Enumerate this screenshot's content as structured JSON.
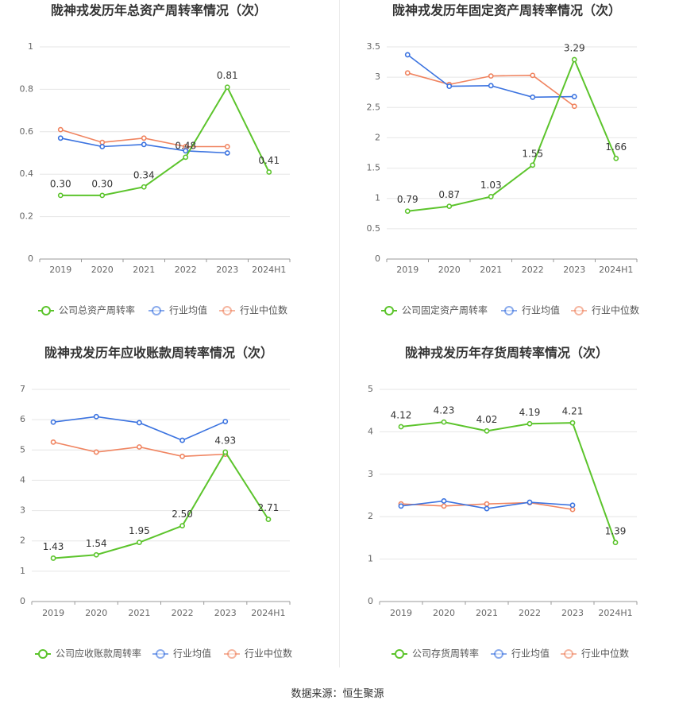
{
  "source_text": "数据来源：恒生聚源",
  "colors": {
    "company": "#5cc42c",
    "avg": "#3b73e0",
    "median": "#f08460"
  },
  "chart_data": [
    {
      "type": "line",
      "title": "陇神戎发历年总资产周转率情况（次）",
      "categories": [
        "2019",
        "2020",
        "2021",
        "2022",
        "2023",
        "2024H1"
      ],
      "yticks": [
        "0",
        "0.2",
        "0.4",
        "0.6",
        "0.8",
        "1"
      ],
      "ylim": [
        0,
        1
      ],
      "grid": true,
      "legend_position": "bottom",
      "series": [
        {
          "name": "公司总资产周转率",
          "values": [
            0.3,
            0.3,
            0.34,
            0.48,
            0.81,
            0.41
          ],
          "labels": [
            "0.30",
            "0.30",
            "0.34",
            "0.48",
            "0.81",
            "0.41"
          ]
        },
        {
          "name": "行业均值",
          "values": [
            0.57,
            0.53,
            0.54,
            0.51,
            0.5,
            null
          ]
        },
        {
          "name": "行业中位数",
          "values": [
            0.61,
            0.55,
            0.57,
            0.53,
            0.53,
            null
          ]
        }
      ]
    },
    {
      "type": "line",
      "title": "陇神戎发历年固定资产周转率情况（次）",
      "categories": [
        "2019",
        "2020",
        "2021",
        "2022",
        "2023",
        "2024H1"
      ],
      "yticks": [
        "0",
        "0.5",
        "1",
        "1.5",
        "2",
        "2.5",
        "3",
        "3.5"
      ],
      "ylim": [
        0,
        3.5
      ],
      "grid": true,
      "legend_position": "bottom",
      "series": [
        {
          "name": "公司固定资产周转率",
          "values": [
            0.79,
            0.87,
            1.03,
            1.55,
            3.29,
            1.66
          ],
          "labels": [
            "0.79",
            "0.87",
            "1.03",
            "1.55",
            "3.29",
            "1.66"
          ]
        },
        {
          "name": "行业均值",
          "values": [
            3.37,
            2.85,
            2.86,
            2.67,
            2.68,
            null
          ]
        },
        {
          "name": "行业中位数",
          "values": [
            3.07,
            2.88,
            3.02,
            3.03,
            2.52,
            null
          ]
        }
      ]
    },
    {
      "type": "line",
      "title": "陇神戎发历年应收账款周转率情况（次）",
      "categories": [
        "2019",
        "2020",
        "2021",
        "2022",
        "2023",
        "2024H1"
      ],
      "yticks": [
        "0",
        "1",
        "2",
        "3",
        "4",
        "5",
        "6",
        "7"
      ],
      "ylim": [
        0,
        7
      ],
      "grid": true,
      "legend_position": "bottom",
      "series": [
        {
          "name": "公司应收账款周转率",
          "values": [
            1.43,
            1.54,
            1.95,
            2.5,
            4.93,
            2.71
          ],
          "labels": [
            "1.43",
            "1.54",
            "1.95",
            "2.50",
            "4.93",
            "2.71"
          ]
        },
        {
          "name": "行业均值",
          "values": [
            5.92,
            6.1,
            5.9,
            5.32,
            5.94,
            null
          ]
        },
        {
          "name": "行业中位数",
          "values": [
            5.26,
            4.93,
            5.1,
            4.79,
            4.86,
            null
          ]
        }
      ]
    },
    {
      "type": "line",
      "title": "陇神戎发历年存货周转率情况（次）",
      "categories": [
        "2019",
        "2020",
        "2021",
        "2022",
        "2023",
        "2024H1"
      ],
      "yticks": [
        "0",
        "1",
        "2",
        "3",
        "4",
        "5"
      ],
      "ylim": [
        0,
        5
      ],
      "grid": true,
      "legend_position": "bottom",
      "series": [
        {
          "name": "公司存货周转率",
          "values": [
            4.12,
            4.23,
            4.02,
            4.19,
            4.21,
            1.39
          ],
          "labels": [
            "4.12",
            "4.23",
            "4.02",
            "4.19",
            "4.21",
            "1.39"
          ]
        },
        {
          "name": "行业均值",
          "values": [
            2.25,
            2.37,
            2.19,
            2.34,
            2.27,
            null
          ]
        },
        {
          "name": "行业中位数",
          "values": [
            2.3,
            2.25,
            2.3,
            2.33,
            2.17,
            null
          ]
        }
      ]
    }
  ]
}
